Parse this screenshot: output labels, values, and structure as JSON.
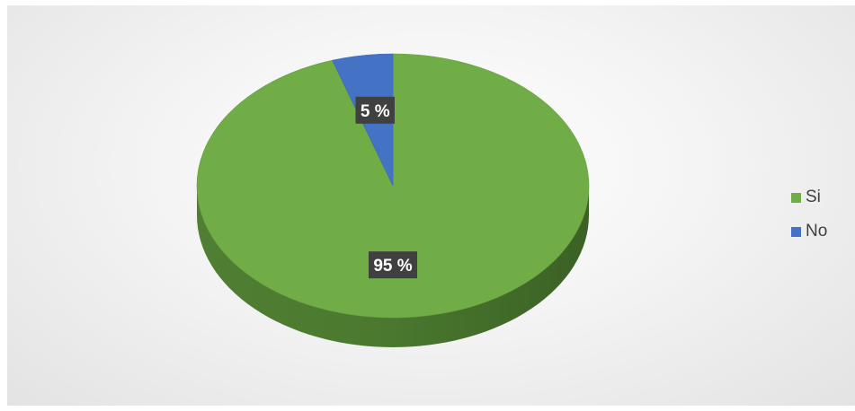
{
  "chart_data": {
    "type": "pie",
    "title": "",
    "categories": [
      "Si",
      "No"
    ],
    "values": [
      95,
      5
    ],
    "labels": [
      "95 %",
      "5 %"
    ],
    "colors": [
      "#70ad47",
      "#4472c4"
    ],
    "legend_position": "right",
    "style": "3d"
  },
  "legend": {
    "items": [
      {
        "label": "Si",
        "color": "#70ad47"
      },
      {
        "label": "No",
        "color": "#4472c4"
      }
    ]
  }
}
